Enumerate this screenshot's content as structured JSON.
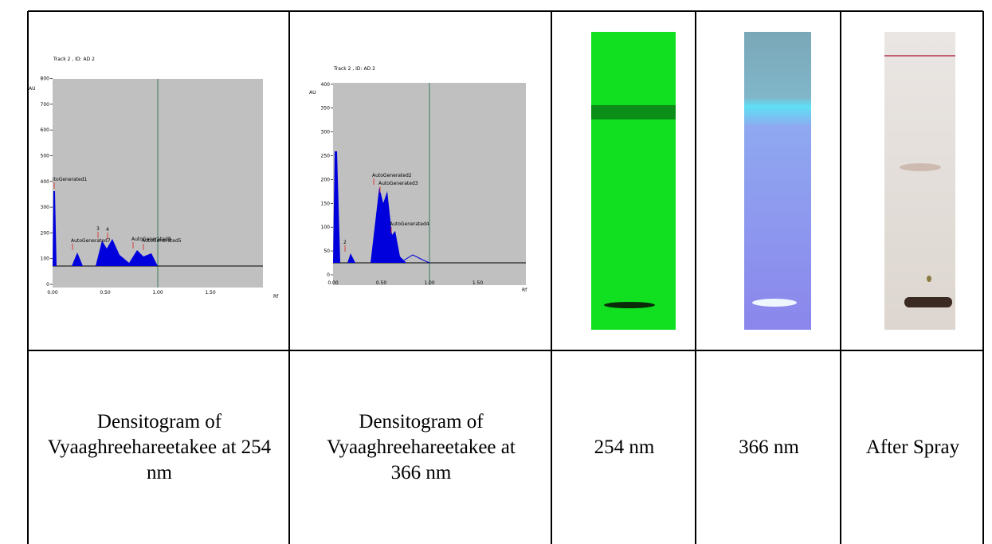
{
  "densitograms": [
    {
      "title": "Track 2 , ID: AD 2",
      "y_unit": "AU",
      "x_unit": "Rf",
      "yticks": [
        "0",
        "100",
        "200",
        "300",
        "400",
        "500",
        "600",
        "700",
        "800"
      ],
      "xticks": [
        "0.00",
        "0.50",
        "1.00",
        "1.50"
      ],
      "peak_labels": [
        "itoGenerated1",
        "AutoGenerated7",
        "3",
        "4",
        "AutoGenerated8",
        "AutoGenerated5"
      ]
    },
    {
      "title": "Track 2 , ID: AD 2",
      "y_unit": "AU",
      "x_unit": "Rf",
      "yticks": [
        "0",
        "50",
        "100",
        "150",
        "200",
        "250",
        "300",
        "350",
        "400"
      ],
      "xticks": [
        "0.00",
        "0.50",
        "1.00",
        "1.50"
      ],
      "peak_labels": [
        "2",
        "AutoGenerated2",
        "AutoGenerated3",
        "AutoGenerated4"
      ]
    }
  ],
  "captions": [
    "Densitogram of Vyaaghreehareetakee at 254 nm",
    "Densitogram of Vyaaghreehareetakee at 366 nm",
    "254 nm",
    "366 nm",
    "After Spray"
  ]
}
